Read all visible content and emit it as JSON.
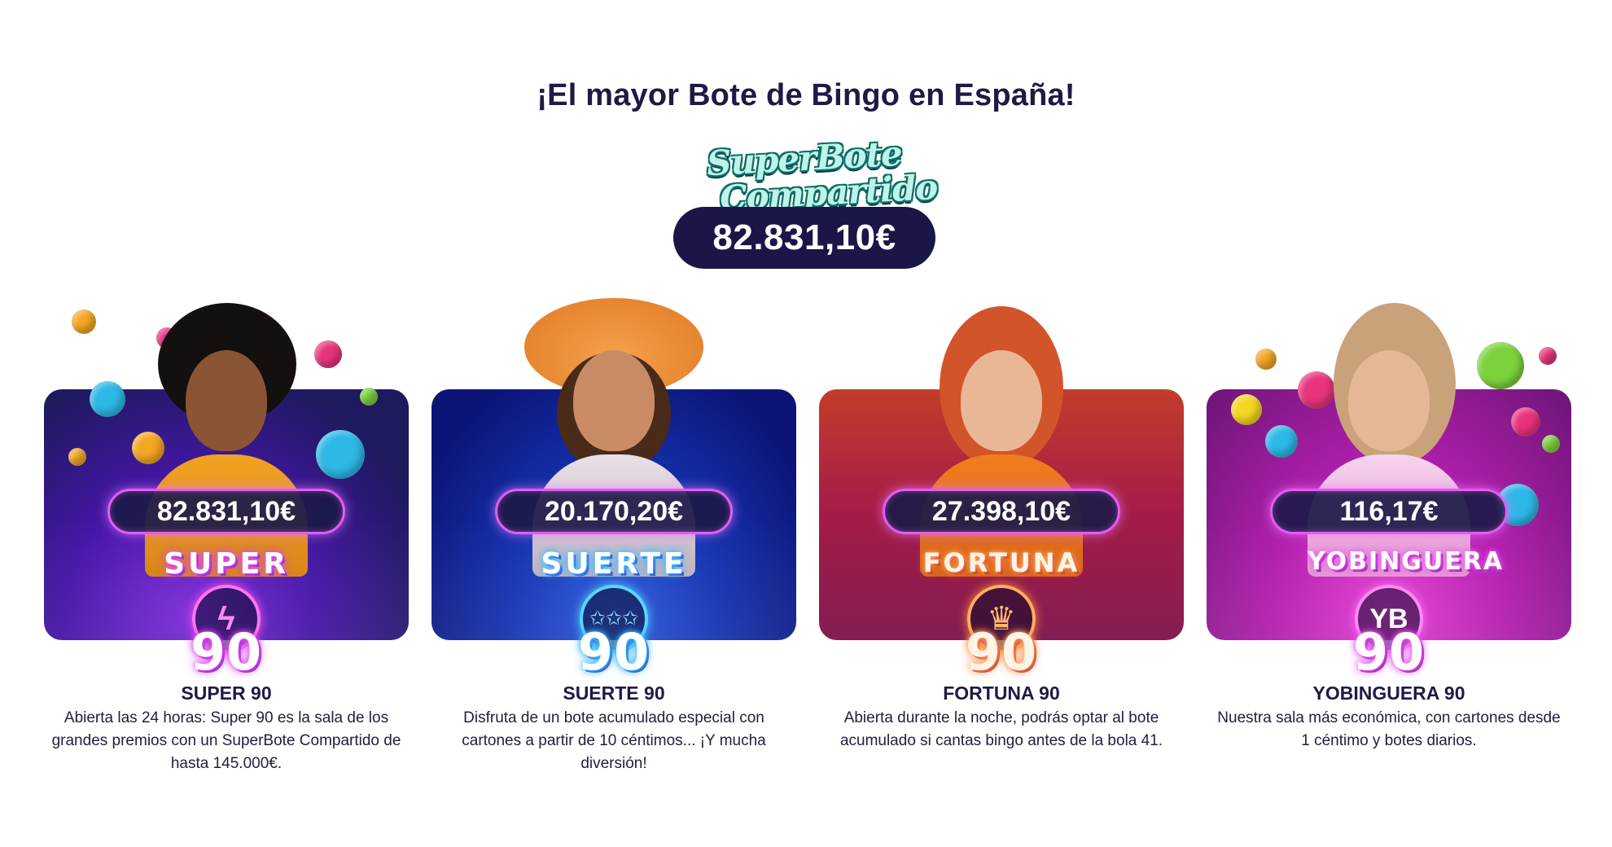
{
  "headline": "¡El mayor Bote de Bingo en España!",
  "superbote": {
    "logo_line1": "SuperBote",
    "logo_line2": "Compartido",
    "amount": "82.831,10€"
  },
  "rooms": [
    {
      "jackpot": "82.831,10€",
      "emblem_word": "SUPER",
      "emblem_icon": "lightning-bolt-icon",
      "emblem_glyph": "ϟ",
      "emblem_number": "90",
      "title": "SUPER 90",
      "description": "Abierta las 24 horas: Super 90 es la sala de los grandes premios con un SuperBote Compartido de hasta 145.000€.",
      "accent": "#7c2bd6"
    },
    {
      "jackpot": "20.170,20€",
      "emblem_word": "SUERTE",
      "emblem_icon": "stars-icon",
      "emblem_glyph": "✩✩✩",
      "emblem_number": "90",
      "title": "SUERTE 90",
      "description": "Disfruta de un bote acumulado especial con cartones a partir de 10 céntimos... ¡Y mucha diversión!",
      "accent": "#1534b2"
    },
    {
      "jackpot": "27.398,10€",
      "emblem_word": "FORTUNA",
      "emblem_icon": "crown-icon",
      "emblem_glyph": "♛",
      "emblem_number": "90",
      "title": "FORTUNA 90",
      "description": "Abierta durante la noche, podrás optar al bote acumulado si cantas bingo antes de la bola 41.",
      "accent": "#a81e46"
    },
    {
      "jackpot": "116,17€",
      "emblem_word": "YOBINGUERA",
      "emblem_icon": "yb-monogram-icon",
      "emblem_glyph": "YB",
      "emblem_number": "90",
      "title": "YOBINGUERA 90",
      "description": "Nuestra sala más económica, con cartones desde 1 céntimo y botes diarios.",
      "accent": "#b31fae"
    }
  ]
}
